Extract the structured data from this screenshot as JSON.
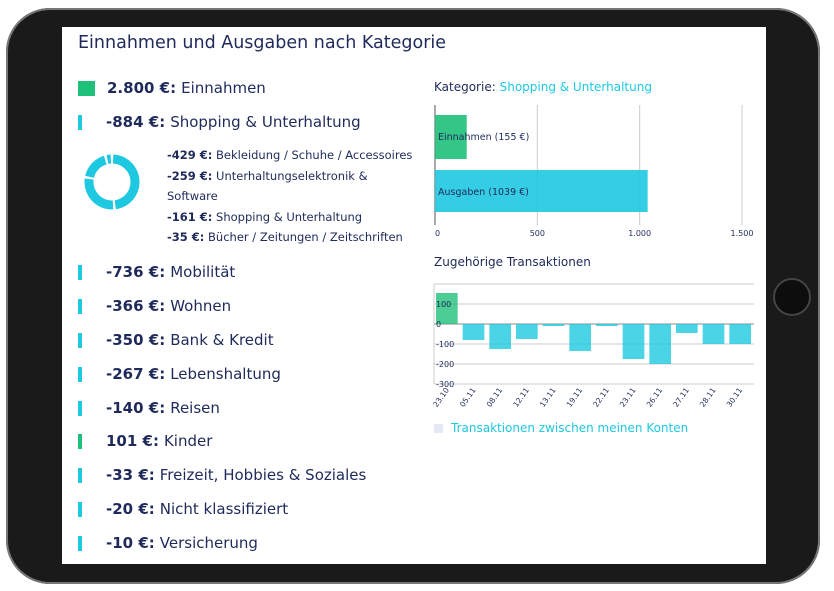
{
  "title": "Einnahmen und Ausgaben nach Kategorie",
  "categories": [
    {
      "amount": "2.800 €:",
      "label": "Einnahmen",
      "color": "#1ec07a",
      "marker": "square"
    },
    {
      "amount": "-884 €:",
      "label": "Shopping & Unterhaltung",
      "color": "#1ec8e0"
    },
    {
      "amount": "-736 €:",
      "label": "Mobilität",
      "color": "#1ec8e0"
    },
    {
      "amount": "-366 €:",
      "label": "Wohnen",
      "color": "#1ec8e0"
    },
    {
      "amount": "-350 €:",
      "label": "Bank & Kredit",
      "color": "#1ec8e0"
    },
    {
      "amount": "-267 €:",
      "label": "Lebenshaltung",
      "color": "#1ec8e0"
    },
    {
      "amount": "-140 €:",
      "label": "Reisen",
      "color": "#1ec8e0"
    },
    {
      "amount": "101 €:",
      "label": "Kinder",
      "color": "#1ec07a"
    },
    {
      "amount": "-33 €:",
      "label": "Freizeit, Hobbies & Soziales",
      "color": "#1ec8e0"
    },
    {
      "amount": "-20 €:",
      "label": "Nicht klassifiziert",
      "color": "#1ec8e0"
    },
    {
      "amount": "-10 €:",
      "label": "Versicherung",
      "color": "#1ec8e0"
    }
  ],
  "subcategories": [
    {
      "amount": "-429 €:",
      "label": "Bekleidung / Schuhe / Accessoires",
      "value": 429
    },
    {
      "amount": "-259 €:",
      "label": "Unterhaltungselektronik & Software",
      "value": 259
    },
    {
      "amount": "-161 €:",
      "label": "Shopping & Unterhaltung",
      "value": 161
    },
    {
      "amount": "-35 €:",
      "label": "Bücher / Zeitungen / Zeitschriften",
      "value": 35
    }
  ],
  "kategorie_label": "Kategorie:",
  "kategorie_value": "Shopping & Unterhaltung",
  "transactions_title": "Zugehörige Transaktionen",
  "legend_label": "Transaktionen zwischen meinen Konten",
  "chart_data": [
    {
      "type": "bar",
      "orientation": "horizontal",
      "categories": [
        "Einnahmen (155 €)",
        "Ausgaben (1039 €)"
      ],
      "values": [
        155,
        1039
      ],
      "colors": [
        "#1ec07a",
        "#1ec8e0"
      ],
      "xlim": [
        0,
        1500
      ],
      "xticks": [
        "0",
        "500",
        "1.000",
        "1.500"
      ],
      "grid": true
    },
    {
      "type": "bar",
      "categories": [
        "23.10",
        "05.11",
        "08.11",
        "12.11",
        "13.11",
        "19.11",
        "22.11",
        "23.11",
        "26.11",
        "27.11",
        "28.11",
        "30.11"
      ],
      "values": [
        155,
        -80,
        -125,
        -75,
        -10,
        -135,
        -10,
        -175,
        -200,
        -45,
        -100,
        -100
      ],
      "ylim": [
        -300,
        200
      ],
      "yticks": [
        "100",
        "0",
        "-100",
        "-200",
        "-300"
      ],
      "grid": true,
      "legend": "bottom-left"
    }
  ]
}
